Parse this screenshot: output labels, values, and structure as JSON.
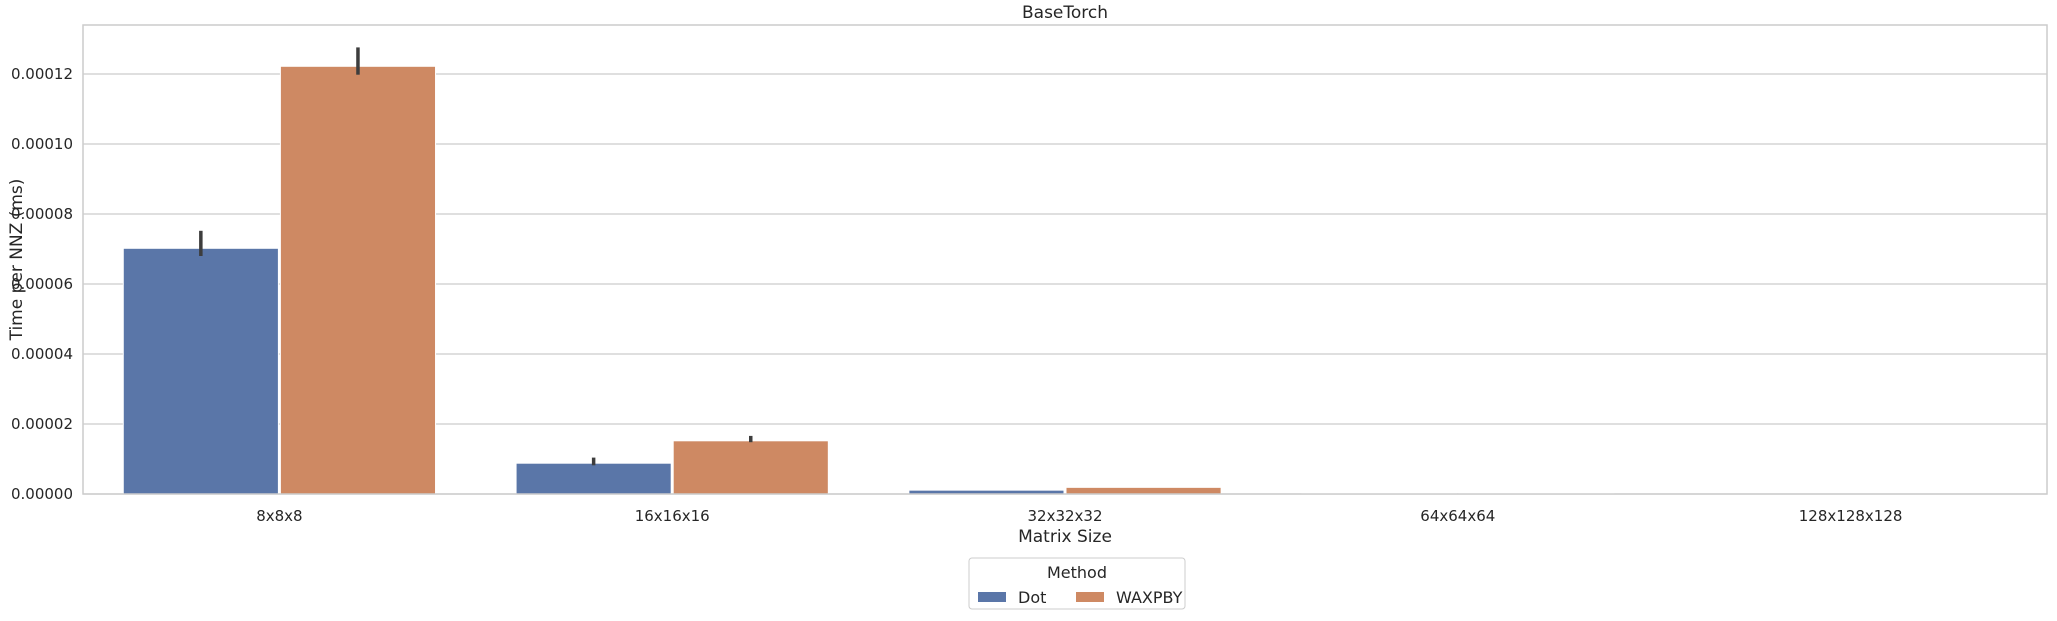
{
  "chart_data": {
    "type": "bar",
    "title": "BaseTorch",
    "xlabel": "Matrix Size",
    "ylabel": "Time per NNZ (ms)",
    "categories": [
      "8x8x8",
      "16x16x16",
      "32x32x32",
      "64x64x64",
      "128x128x128"
    ],
    "ylim": [
      0,
      0.000134
    ],
    "yticks": [
      "0.00000",
      "0.00002",
      "0.00004",
      "0.00006",
      "0.00008",
      "0.00010",
      "0.00012"
    ],
    "grid": "horizontal",
    "legend": {
      "title": "Method",
      "placement": "bottom-center"
    },
    "series": [
      {
        "name": "Dot",
        "color": "#5a76a8",
        "values": [
          7.02e-05,
          8.8e-06,
          1.1e-06,
          1.5e-07,
          3e-08
        ],
        "err_low": [
          6.8e-05,
          8.2e-06,
          1e-06,
          1.4e-07,
          3e-08
        ],
        "err_high": [
          7.52e-05,
          1.04e-05,
          1.2e-06,
          1.6e-07,
          3e-08
        ]
      },
      {
        "name": "WAXPBY",
        "color": "#ce8963",
        "values": [
          0.0001222,
          1.52e-05,
          1.9e-06,
          2.4e-07,
          3e-08
        ],
        "err_low": [
          0.0001198,
          1.48e-05,
          1.8e-06,
          2.3e-07,
          3e-08
        ],
        "err_high": [
          0.0001276,
          1.66e-05,
          2e-06,
          2.5e-07,
          3e-08
        ]
      }
    ]
  }
}
